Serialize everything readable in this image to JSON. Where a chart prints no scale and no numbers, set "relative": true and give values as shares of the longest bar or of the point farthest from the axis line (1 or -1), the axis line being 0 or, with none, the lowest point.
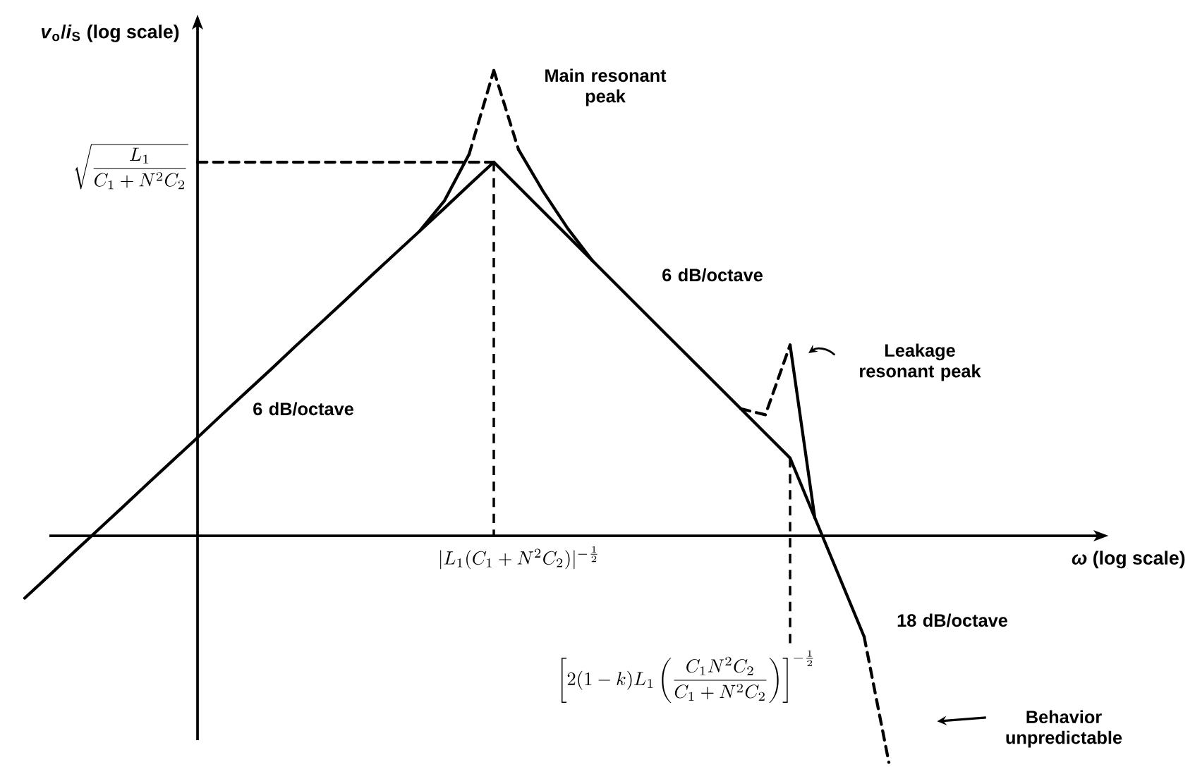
{
  "chart_data": {
    "type": "line",
    "relative": true,
    "ylabel": "*v*$_{o}$/*i*$_{S}$ (log scale)",
    "categories": [
      null,
      null,
      null,
      null,
      null,
      null,
      null,
      null,
      null,
      null,
      null,
      null,
      null,
      null,
      null,
      null,
      null,
      null,
      null,
      null,
      null,
      null,
      null,
      null,
      null,
      null,
      null,
      null,
      null,
      null,
      null,
      null,
      null,
      null,
      null,
      null
    ],
    "series": [
      {
        "color": "#000000",
        "line_style": "solid",
        "values": [
          -0.134,
          -0.085,
          -0.035,
          0.014,
          0.063,
          0.113,
          0.162,
          0.211,
          0.261,
          0.31,
          0.359,
          0.409,
          0.458,
          0.507,
          0.557,
          0.606,
          0.655,
          0.704,
          0.754,
          0.803,
          0.75,
          0.697,
          0.644,
          0.591,
          0.538,
          0.485,
          0.432,
          0.379,
          0.326,
          0.273,
          0.22,
          0.167,
          0.039,
          -0.089,
          -0.217,
          null
        ]
      },
      {
        "color": "#000000",
        "line_style": "dashed",
        "values": [
          null,
          null,
          null,
          null,
          null,
          null,
          null,
          null,
          null,
          null,
          null,
          null,
          null,
          null,
          null,
          null,
          null,
          null,
          null,
          null,
          null,
          null,
          null,
          null,
          null,
          null,
          null,
          null,
          null,
          null,
          null,
          null,
          null,
          null,
          -0.217,
          -0.487
        ]
      },
      {
        "color": "#000000",
        "line_style": "solid",
        "values": [
          null,
          null,
          null,
          null,
          null,
          null,
          null,
          null,
          null,
          null,
          null,
          null,
          null,
          null,
          null,
          null,
          0.655,
          0.72,
          0.82,
          null,
          null,
          null,
          null,
          null,
          null,
          null,
          null,
          null,
          null,
          null,
          null,
          null,
          null,
          null,
          null,
          null
        ]
      },
      {
        "color": "#000000",
        "line_style": "dashed",
        "values": [
          null,
          null,
          null,
          null,
          null,
          null,
          null,
          null,
          null,
          null,
          null,
          null,
          null,
          null,
          null,
          null,
          null,
          null,
          0.82,
          1.0,
          null,
          null,
          null,
          null,
          null,
          null,
          null,
          null,
          null,
          null,
          null,
          null,
          null,
          null,
          null,
          null
        ]
      },
      {
        "color": "#000000",
        "line_style": "dashed",
        "values": [
          null,
          null,
          null,
          null,
          null,
          null,
          null,
          null,
          null,
          null,
          null,
          null,
          null,
          null,
          null,
          null,
          null,
          null,
          null,
          1.0,
          0.83,
          null,
          null,
          null,
          null,
          null,
          null,
          null,
          null,
          null,
          null,
          null,
          null,
          null,
          null,
          null
        ]
      },
      {
        "color": "#000000",
        "line_style": "solid",
        "values": [
          null,
          null,
          null,
          null,
          null,
          null,
          null,
          null,
          null,
          null,
          null,
          null,
          null,
          null,
          null,
          null,
          null,
          null,
          null,
          null,
          0.83,
          0.74,
          0.66,
          0.591,
          null,
          null,
          null,
          null,
          null,
          null,
          null,
          null,
          null,
          null,
          null,
          null
        ]
      },
      {
        "color": "#000000",
        "line_style": "dashed",
        "values": [
          null,
          null,
          null,
          null,
          null,
          null,
          null,
          null,
          null,
          null,
          null,
          null,
          null,
          null,
          null,
          null,
          null,
          null,
          null,
          null,
          null,
          null,
          null,
          null,
          null,
          null,
          null,
          null,
          null,
          0.273,
          0.26,
          0.41,
          null,
          null,
          null,
          null
        ]
      },
      {
        "color": "#000000",
        "line_style": "solid",
        "values": [
          null,
          null,
          null,
          null,
          null,
          null,
          null,
          null,
          null,
          null,
          null,
          null,
          null,
          null,
          null,
          null,
          null,
          null,
          null,
          null,
          null,
          null,
          null,
          null,
          null,
          null,
          null,
          null,
          null,
          null,
          null,
          0.41,
          0.039,
          null,
          null,
          null
        ]
      },
      {
        "color": "#000000",
        "line_style": "dashed",
        "values": [
          null,
          null,
          null,
          null,
          null,
          null,
          null,
          0.803,
          0.803,
          0.803,
          0.803,
          0.803,
          0.803,
          0.803,
          0.803,
          0.803,
          0.803,
          0.803,
          0.803,
          0.803,
          null,
          null,
          null,
          null,
          null,
          null,
          null,
          null,
          null,
          null,
          null,
          null,
          null,
          null,
          null,
          null
        ]
      }
    ],
    "annotations": [
      "*ω* (log scale)",
      "\\sqrt{\\dfrac{L_1}{C_1+N^2C_2}}",
      "|L_1(C_1+N^2C_2)|^{-\\frac{1}{2}}",
      "\\left[2(1-k)L_1\\left(\\frac{C_1N^2C_2}{C_1+N^2C_2}\\right)\\right]^{-\\frac{1}{2}}",
      "Main resonant peak",
      "6 dB/octave",
      "6 dB/octave",
      "Leakage resonant peak",
      "18 dB/octave",
      "Behavior unpredictable"
    ]
  }
}
